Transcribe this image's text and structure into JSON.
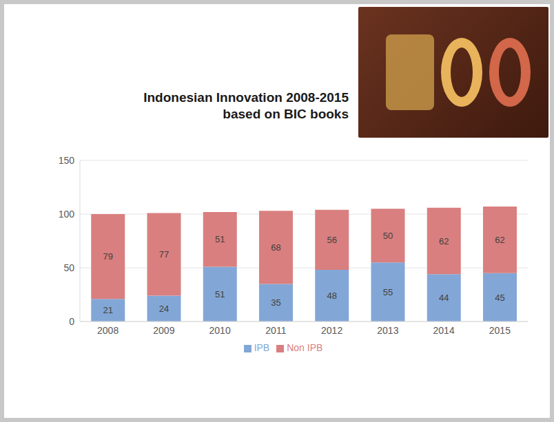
{
  "chart_data": {
    "type": "bar",
    "title": "Indonesian Innovation 2008-2015 based on BIC books",
    "categories": [
      "2008",
      "2009",
      "2010",
      "2011",
      "2012",
      "2013",
      "2014",
      "2015"
    ],
    "series": [
      {
        "name": "IPB",
        "color": "#82a7d6",
        "values": [
          21,
          24,
          51,
          35,
          48,
          55,
          44,
          45
        ]
      },
      {
        "name": "Non IPB",
        "color": "#d97f7f",
        "values": [
          79,
          77,
          51,
          68,
          56,
          50,
          62,
          62
        ]
      }
    ],
    "ylim": [
      0,
      150
    ],
    "yticks": [
      0,
      50,
      100,
      150
    ],
    "grid": true,
    "stacked": true,
    "data_labels": true,
    "legend": "bottom"
  }
}
